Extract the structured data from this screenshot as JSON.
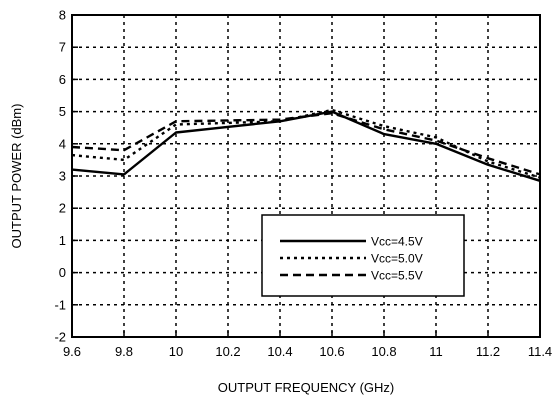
{
  "chart_data": {
    "type": "line",
    "title": "",
    "xlabel": "OUTPUT FREQUENCY (GHz)",
    "ylabel": "OUTPUT POWER (dBm)",
    "xlim": [
      9.6,
      11.4
    ],
    "ylim": [
      -2,
      8
    ],
    "grid": true,
    "legend_position": "bottom-right",
    "x_ticks": [
      "9.6",
      "9.8",
      "10",
      "10.2",
      "10.4",
      "10.6",
      "10.8",
      "11",
      "11.2",
      "11.4"
    ],
    "y_ticks": [
      "8",
      "7",
      "6",
      "5",
      "4",
      "3",
      "2",
      "1",
      "0",
      "-1",
      "-2"
    ],
    "series": [
      {
        "name": "Vcc=4.5V",
        "style": "solid",
        "x": [
          9.6,
          9.8,
          10.0,
          10.4,
          10.6,
          10.8,
          11.0,
          11.2,
          11.4
        ],
        "y": [
          3.2,
          3.05,
          4.35,
          4.7,
          5.0,
          4.3,
          4.0,
          3.35,
          2.85
        ]
      },
      {
        "name": "Vcc=5.0V",
        "style": "dotted",
        "x": [
          9.6,
          9.8,
          10.0,
          10.4,
          10.6,
          10.8,
          11.0,
          11.2,
          11.4
        ],
        "y": [
          3.65,
          3.5,
          4.6,
          4.7,
          5.05,
          4.55,
          4.2,
          3.45,
          2.95
        ]
      },
      {
        "name": "Vcc=5.5V",
        "style": "dashed",
        "x": [
          9.6,
          9.8,
          10.0,
          10.4,
          10.6,
          10.8,
          11.0,
          11.2,
          11.4
        ],
        "y": [
          3.9,
          3.8,
          4.7,
          4.75,
          4.95,
          4.45,
          4.1,
          3.55,
          3.05
        ]
      }
    ]
  }
}
